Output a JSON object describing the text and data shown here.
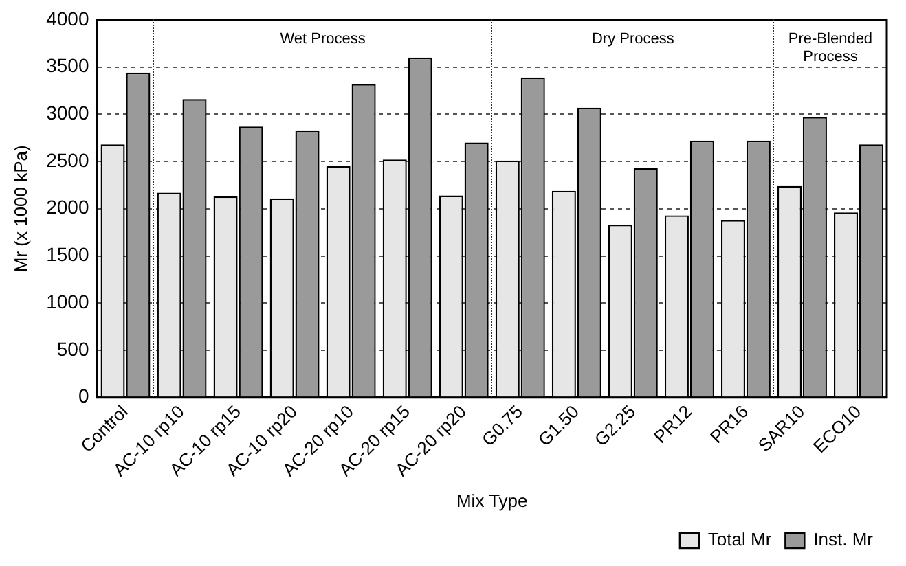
{
  "chart_data": {
    "type": "bar",
    "xlabel": "Mix Type",
    "ylabel": "Mr (x 1000 kPa)",
    "categories": [
      "Control",
      "AC-10 rp10",
      "AC-10 rp15",
      "AC-10 rp20",
      "AC-20 rp10",
      "AC-20 rp15",
      "AC-20 rp20",
      "G0.75",
      "G1.50",
      "G2.25",
      "PR12",
      "PR16",
      "SAR10",
      "ECO10"
    ],
    "series": [
      {
        "name": "Total Mr",
        "color": "#e6e6e6",
        "values": [
          2680,
          2170,
          2130,
          2110,
          2450,
          2520,
          2140,
          2510,
          2190,
          1830,
          1930,
          1880,
          2240,
          1960
        ]
      },
      {
        "name": "Inst. Mr",
        "color": "#9a9a9a",
        "values": [
          3440,
          3160,
          2870,
          2830,
          3320,
          3600,
          2700,
          3390,
          3070,
          2430,
          2720,
          2720,
          2970,
          2680
        ]
      }
    ],
    "ylim": [
      0,
      4000
    ],
    "yticks": [
      0,
      500,
      1000,
      1500,
      2000,
      2500,
      3000,
      3500,
      4000
    ],
    "annotations": [
      "Wet Process",
      "Dry Process",
      "Pre-Blended Process"
    ],
    "grid": "y",
    "legend": "bottom right"
  }
}
